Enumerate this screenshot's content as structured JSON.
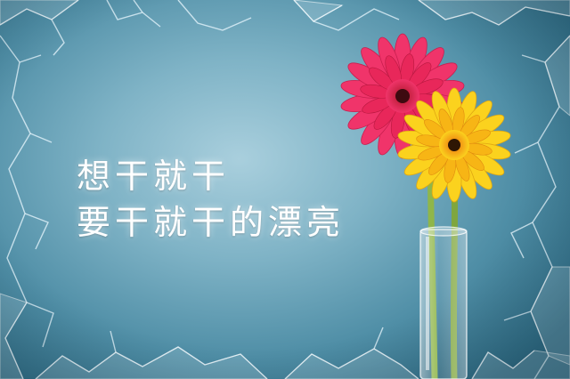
{
  "quote": {
    "line1": "想干就干",
    "line2": "要干就干的漂亮"
  },
  "colors": {
    "background": "#7fb3c6",
    "text": "#ffffff",
    "flower_red": "#e8275a",
    "flower_yellow": "#f7c21a",
    "stem": "#8fb64a"
  },
  "icons": [
    "red-gerbera-icon",
    "yellow-gerbera-icon",
    "glass-vase-icon",
    "shattered-glass-frame"
  ]
}
